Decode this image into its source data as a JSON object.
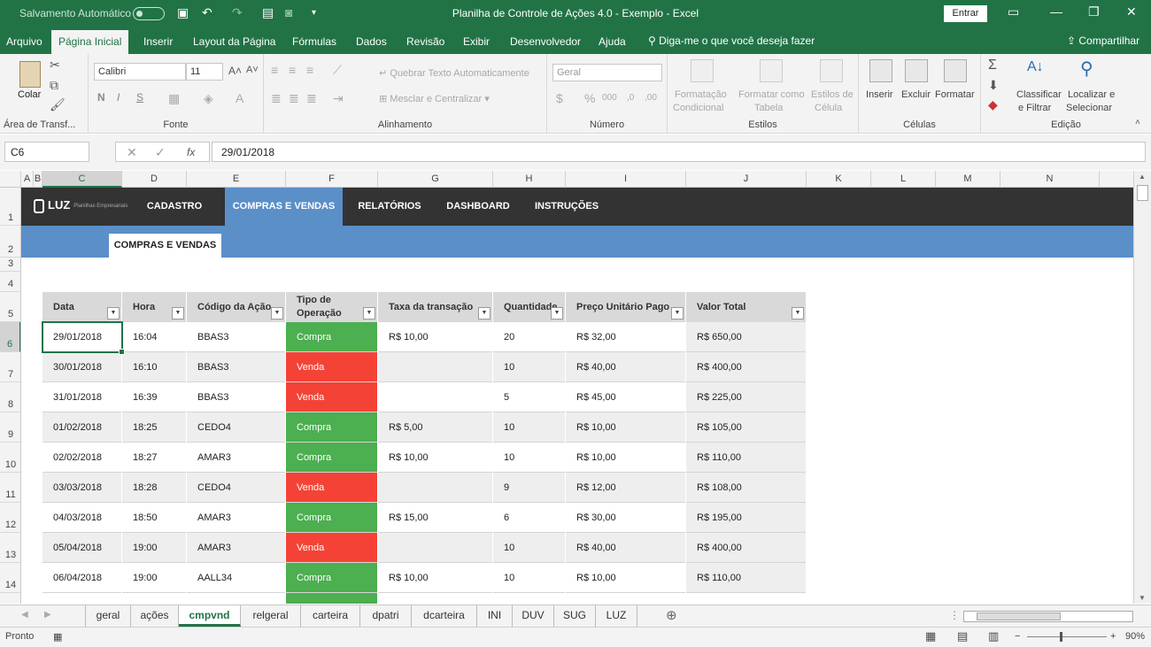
{
  "titlebar": {
    "autosave": "Salvamento Automático",
    "title": "Planilha de Controle de Ações 4.0 - Exemplo  -  Excel",
    "signin": "Entrar"
  },
  "ribbon_tabs": [
    "Arquivo",
    "Página Inicial",
    "Inserir",
    "Layout da Página",
    "Fórmulas",
    "Dados",
    "Revisão",
    "Exibir",
    "Desenvolvedor",
    "Ajuda"
  ],
  "tell_me": "Diga-me o que você deseja fazer",
  "share": "Compartilhar",
  "ribbon": {
    "clipboard": {
      "paste": "Colar",
      "group": "Área de Transf..."
    },
    "font": {
      "name": "Calibri",
      "size": "11",
      "bold": "N",
      "italic": "I",
      "underline": "S",
      "group": "Fonte"
    },
    "alignment": {
      "wrap": "Quebrar Texto Automaticamente",
      "merge": "Mesclar e Centralizar",
      "group": "Alinhamento"
    },
    "number": {
      "format": "Geral",
      "group": "Número"
    },
    "styles": {
      "cond_l1": "Formatação",
      "cond_l2": "Condicional",
      "table_l1": "Formatar como",
      "table_l2": "Tabela",
      "cell_l1": "Estilos de",
      "cell_l2": "Célula",
      "group": "Estilos"
    },
    "cells": {
      "insert": "Inserir",
      "delete": "Excluir",
      "format": "Formatar",
      "group": "Células"
    },
    "editing": {
      "sort_l1": "Classificar",
      "sort_l2": "e Filtrar",
      "find_l1": "Localizar e",
      "find_l2": "Selecionar",
      "group": "Edição"
    }
  },
  "formula_bar": {
    "name_box": "C6",
    "fx": "fx",
    "value": "29/01/2018"
  },
  "columns": [
    "A",
    "B",
    "C",
    "D",
    "E",
    "F",
    "G",
    "H",
    "I",
    "J",
    "K",
    "L",
    "M",
    "N"
  ],
  "rows": [
    "1",
    "2",
    "3",
    "4",
    "5",
    "6",
    "7",
    "8",
    "9",
    "10",
    "11",
    "12",
    "13",
    "14"
  ],
  "nav": {
    "logo": "LUZ",
    "logo_sub": "Planilhas Empresariais",
    "items": [
      "CADASTRO",
      "COMPRAS E VENDAS",
      "RELATÓRIOS",
      "DASHBOARD",
      "INSTRUÇÕES"
    ],
    "page_tag": "COMPRAS E VENDAS"
  },
  "table": {
    "headers": [
      "Data",
      "Hora",
      "Código da Ação",
      "Tipo de Operação",
      "Taxa da transação",
      "Quantidade",
      "Preço Unitário Pago",
      "Valor Total"
    ],
    "rows": [
      [
        "29/01/2018",
        "16:04",
        "BBAS3",
        "Compra",
        "R$ 10,00",
        "20",
        "R$ 32,00",
        "R$ 650,00"
      ],
      [
        "30/01/2018",
        "16:10",
        "BBAS3",
        "Venda",
        "",
        "10",
        "R$ 40,00",
        "R$ 400,00"
      ],
      [
        "31/01/2018",
        "16:39",
        "BBAS3",
        "Venda",
        "",
        "5",
        "R$ 45,00",
        "R$ 225,00"
      ],
      [
        "01/02/2018",
        "18:25",
        "CEDO4",
        "Compra",
        "R$ 5,00",
        "10",
        "R$ 10,00",
        "R$ 105,00"
      ],
      [
        "02/02/2018",
        "18:27",
        "AMAR3",
        "Compra",
        "R$ 10,00",
        "10",
        "R$ 10,00",
        "R$ 110,00"
      ],
      [
        "03/03/2018",
        "18:28",
        "CEDO4",
        "Venda",
        "",
        "9",
        "R$ 12,00",
        "R$ 108,00"
      ],
      [
        "04/03/2018",
        "18:50",
        "AMAR3",
        "Compra",
        "R$ 15,00",
        "6",
        "R$ 30,00",
        "R$ 195,00"
      ],
      [
        "05/04/2018",
        "19:00",
        "AMAR3",
        "Venda",
        "",
        "10",
        "R$ 40,00",
        "R$ 400,00"
      ],
      [
        "06/04/2018",
        "19:00",
        "AALL34",
        "Compra",
        "R$ 10,00",
        "10",
        "R$ 10,00",
        "R$ 110,00"
      ]
    ]
  },
  "sheet_tabs": [
    "geral",
    "ações",
    "cmpvnd",
    "relgeral",
    "carteira",
    "dpatri",
    "dcarteira",
    "INI",
    "DUV",
    "SUG",
    "LUZ"
  ],
  "active_sheet": "cmpvnd",
  "status": {
    "ready": "Pronto",
    "zoom": "90%"
  },
  "colors": {
    "excel_green": "#217346",
    "nav_dark": "#333333",
    "nav_blue": "#5b8fc8",
    "compra": "#4caf50",
    "venda": "#f44336"
  }
}
